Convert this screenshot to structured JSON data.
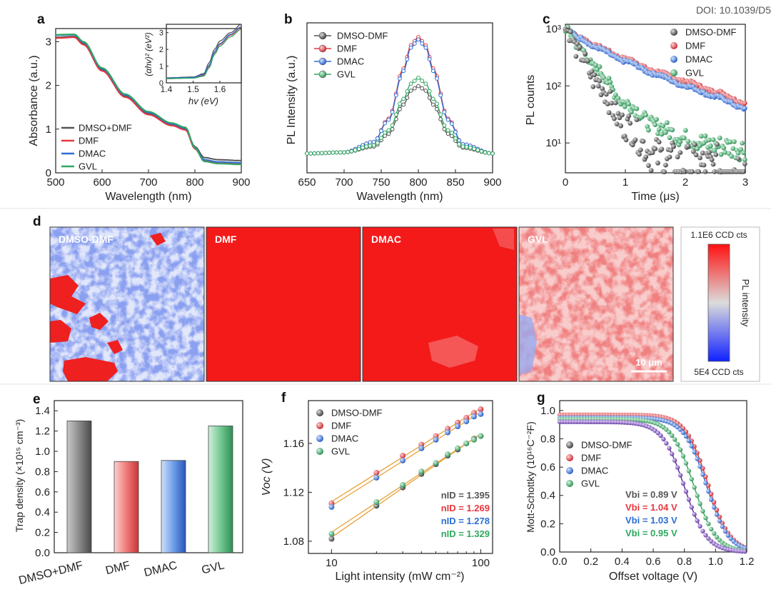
{
  "header": {
    "doi_partial": "DOI: 10.1039/D5"
  },
  "colors": {
    "dmso_dmf": "#555555",
    "dmf": "#e8373d",
    "dmac": "#2a6fd6",
    "gvl": "#2fa860",
    "fit": "#e8a23a"
  },
  "panels": {
    "a": {
      "label": "a",
      "xlabel": "Wavelength (nm)",
      "ylabel": "Absorbance (a.u.)",
      "xticks": [
        "500",
        "600",
        "700",
        "800",
        "900"
      ],
      "yticks": [
        "0",
        "1",
        "2",
        "3"
      ],
      "legend": [
        "DMSO+DMF",
        "DMF",
        "DMAC",
        "GVL"
      ],
      "inset": {
        "xlabel": "hv (eV)",
        "ylabel": "(αhv)² (eV²)",
        "xticks": [
          "1.4",
          "1.5",
          "1.6"
        ],
        "yticks": [
          "0",
          "1",
          "2",
          "3"
        ]
      }
    },
    "b": {
      "label": "b",
      "xlabel": "Wavelength (nm)",
      "ylabel": "PL Intensity (a.u.)",
      "xticks": [
        "650",
        "700",
        "750",
        "800",
        "850",
        "900"
      ],
      "legend": [
        "DMSO-DMF",
        "DMF",
        "DMAC",
        "GVL"
      ]
    },
    "c": {
      "label": "c",
      "xlabel": "Time (μs)",
      "ylabel": "PL counts",
      "xticks": [
        "0",
        "1",
        "2",
        "3"
      ],
      "yticks": [
        "10¹",
        "10²",
        "10³"
      ],
      "legend": [
        "DMSO-DMF",
        "DMF",
        "DMAC",
        "GVL"
      ]
    },
    "d": {
      "label": "d",
      "maps": [
        "DMSO-DMF",
        "DMF",
        "DMAC",
        "GVL"
      ],
      "scalebar": "10 μm",
      "colorbar": {
        "max": "1.1E6 CCD cts",
        "min": "5E4 CCD cts",
        "label": "PL intensity"
      }
    },
    "e": {
      "label": "e",
      "ylabel": "Trap density (×10¹⁵ cm⁻³)",
      "yticks": [
        "0.0",
        "0.2",
        "0.4",
        "0.6",
        "0.8",
        "1.0",
        "1.2",
        "1.4"
      ]
    },
    "f": {
      "label": "f",
      "xlabel": "Light intensity (mW cm⁻²)",
      "ylabel": "Voc (V)",
      "xticks": [
        "10",
        "100"
      ],
      "yticks": [
        "1.08",
        "1.12",
        "1.16"
      ],
      "legend": [
        "DMSO-DMF",
        "DMF",
        "DMAC",
        "GVL"
      ],
      "annotations": [
        "nID = 1.395",
        "nID = 1.269",
        "nID = 1.278",
        "nID = 1.329"
      ]
    },
    "g": {
      "label": "g",
      "xlabel": "Offset voltage (V)",
      "ylabel": "Mott-Schottky (10¹⁶C⁻²F)",
      "xticks": [
        "0.0",
        "0.2",
        "0.4",
        "0.6",
        "0.8",
        "1.0",
        "1.2"
      ],
      "yticks": [
        "0.0",
        "0.2",
        "0.4",
        "0.6",
        "0.8",
        "1.0"
      ],
      "legend": [
        "DMSO-DMF",
        "DMF",
        "DMAC",
        "GVL"
      ],
      "annotations": [
        "Vbi = 0.89 V",
        "Vbi = 1.04 V",
        "Vbi = 1.03 V",
        "Vbi = 0.95 V"
      ]
    }
  },
  "chart_data": [
    {
      "type": "line",
      "title": "a",
      "xlabel": "Wavelength (nm)",
      "ylabel": "Absorbance (a.u.)",
      "xlim": [
        500,
        900
      ],
      "ylim": [
        0,
        3.3
      ],
      "x": [
        500,
        540,
        560,
        600,
        650,
        700,
        750,
        780,
        800,
        820,
        850,
        900
      ],
      "series": [
        {
          "name": "DMSO+DMF",
          "values": [
            3.1,
            3.12,
            2.95,
            2.35,
            1.75,
            1.35,
            1.1,
            1.0,
            0.6,
            0.35,
            0.3,
            0.28
          ]
        },
        {
          "name": "DMF",
          "values": [
            3.08,
            3.1,
            2.93,
            2.33,
            1.73,
            1.33,
            1.08,
            0.98,
            0.55,
            0.28,
            0.24,
            0.22
          ]
        },
        {
          "name": "DMAC",
          "values": [
            3.15,
            3.16,
            2.98,
            2.38,
            1.78,
            1.38,
            1.12,
            1.02,
            0.58,
            0.3,
            0.25,
            0.23
          ]
        },
        {
          "name": "GVL",
          "values": [
            3.16,
            3.17,
            3.0,
            2.4,
            1.8,
            1.4,
            1.14,
            1.04,
            0.57,
            0.26,
            0.21,
            0.19
          ]
        }
      ]
    },
    {
      "type": "line",
      "title": "a-inset",
      "xlabel": "hv (eV)",
      "ylabel": "(αhv)² (eV²)",
      "xlim": [
        1.4,
        1.68
      ],
      "ylim": [
        0,
        3.5
      ],
      "x": [
        1.4,
        1.5,
        1.54,
        1.56,
        1.58,
        1.6,
        1.64,
        1.68
      ],
      "series": [
        {
          "name": "DMSO+DMF",
          "values": [
            0.3,
            0.35,
            0.55,
            1.2,
            2.0,
            2.5,
            3.0,
            3.5
          ]
        },
        {
          "name": "DMF",
          "values": [
            0.25,
            0.3,
            0.45,
            1.0,
            1.8,
            2.3,
            2.85,
            3.3
          ]
        },
        {
          "name": "DMAC",
          "values": [
            0.28,
            0.32,
            0.5,
            1.05,
            1.85,
            2.35,
            2.9,
            3.35
          ]
        },
        {
          "name": "GVL",
          "values": [
            0.25,
            0.28,
            0.4,
            0.9,
            1.7,
            2.2,
            2.75,
            3.2
          ]
        }
      ]
    },
    {
      "type": "line",
      "title": "b",
      "xlabel": "Wavelength (nm)",
      "ylabel": "PL Intensity (a.u.)",
      "xlim": [
        650,
        900
      ],
      "x": [
        650,
        700,
        740,
        760,
        780,
        790,
        800,
        810,
        820,
        840,
        860,
        900
      ],
      "series": [
        {
          "name": "DMSO-DMF",
          "values": [
            0,
            0.01,
            0.06,
            0.17,
            0.42,
            0.54,
            0.58,
            0.54,
            0.42,
            0.17,
            0.05,
            0
          ]
        },
        {
          "name": "DMF",
          "values": [
            0,
            0.01,
            0.1,
            0.3,
            0.73,
            0.93,
            1.0,
            0.93,
            0.73,
            0.3,
            0.08,
            0
          ]
        },
        {
          "name": "DMAC",
          "values": [
            0,
            0.01,
            0.1,
            0.29,
            0.71,
            0.91,
            0.98,
            0.91,
            0.71,
            0.29,
            0.08,
            0
          ]
        },
        {
          "name": "GVL",
          "values": [
            0,
            0.01,
            0.07,
            0.2,
            0.47,
            0.6,
            0.65,
            0.6,
            0.47,
            0.2,
            0.06,
            0
          ]
        }
      ]
    },
    {
      "type": "scatter",
      "title": "c",
      "xlabel": "Time (μs)",
      "ylabel": "PL counts",
      "xlim": [
        0,
        3
      ],
      "ylim": [
        3,
        1200
      ],
      "yscale": "log",
      "x": [
        0,
        0.25,
        0.5,
        1.0,
        1.5,
        2.0,
        2.5,
        3.0
      ],
      "series": [
        {
          "name": "DMSO-DMF",
          "values": [
            1000,
            350,
            120,
            20,
            6,
            4,
            3.5,
            3.5
          ]
        },
        {
          "name": "DMF",
          "values": [
            1000,
            700,
            500,
            300,
            180,
            120,
            80,
            50
          ]
        },
        {
          "name": "DMAC",
          "values": [
            1000,
            680,
            470,
            270,
            160,
            100,
            65,
            40
          ]
        },
        {
          "name": "GVL",
          "values": [
            1000,
            450,
            200,
            50,
            20,
            12,
            9,
            8
          ]
        }
      ]
    },
    {
      "type": "bar",
      "title": "e",
      "ylabel": "Trap density (×10¹⁵ cm⁻³)",
      "ylim": [
        0,
        1.5
      ],
      "categories": [
        "DMSO+DMF",
        "DMF",
        "DMAC",
        "GVL"
      ],
      "values": [
        1.3,
        0.9,
        0.91,
        1.25
      ]
    },
    {
      "type": "scatter",
      "title": "f",
      "xlabel": "Light intensity (mW cm⁻²)",
      "ylabel": "Voc (V)",
      "xscale": "log",
      "xlim": [
        7,
        120
      ],
      "ylim": [
        1.07,
        1.195
      ],
      "x": [
        10,
        20,
        30,
        40,
        50,
        60,
        70,
        80,
        90,
        100
      ],
      "series": [
        {
          "name": "DMSO-DMF",
          "values": [
            1.082,
            1.109,
            1.124,
            1.135,
            1.143,
            1.15,
            1.155,
            1.16,
            1.164,
            1.166
          ]
        },
        {
          "name": "DMF",
          "values": [
            1.111,
            1.136,
            1.15,
            1.159,
            1.166,
            1.172,
            1.177,
            1.181,
            1.185,
            1.188
          ]
        },
        {
          "name": "DMAC",
          "values": [
            1.108,
            1.132,
            1.146,
            1.156,
            1.163,
            1.169,
            1.174,
            1.178,
            1.182,
            1.184
          ]
        },
        {
          "name": "GVL",
          "values": [
            1.086,
            1.112,
            1.126,
            1.137,
            1.144,
            1.151,
            1.156,
            1.16,
            1.163,
            1.166
          ]
        }
      ]
    },
    {
      "type": "scatter",
      "title": "g",
      "xlabel": "Offset voltage (V)",
      "ylabel": "Mott-Schottky (10¹⁶C⁻²F)",
      "xlim": [
        0,
        1.2
      ],
      "ylim": [
        0,
        1.07
      ],
      "series": [
        {
          "name": "DMSO-DMF",
          "vbi": 0.89,
          "plateau": 0.92
        },
        {
          "name": "DMF",
          "vbi": 1.04,
          "plateau": 0.97
        },
        {
          "name": "DMAC",
          "vbi": 1.03,
          "plateau": 0.95
        },
        {
          "name": "GVL",
          "vbi": 0.95,
          "plateau": 0.94
        }
      ]
    }
  ]
}
